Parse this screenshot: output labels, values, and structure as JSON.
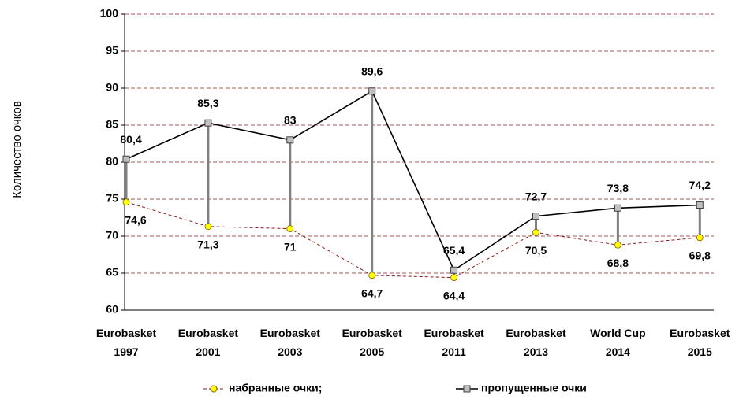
{
  "chart_data": {
    "type": "line",
    "y_label": "Количество очков",
    "categories": [
      "Eurobasket 1997",
      "Eurobasket 2001",
      "Eurobasket 2003",
      "Eurobasket 2005",
      "Eurobasket 2011",
      "Eurobasket 2013",
      "World Cup 2014",
      "Eurobasket 2015"
    ],
    "series": [
      {
        "name": "набранные очки;",
        "color": "#8b1a1a",
        "marker_color": "#ffff00",
        "values": [
          74.6,
          71.3,
          71,
          64.7,
          64.4,
          70.5,
          68.8,
          69.8
        ],
        "value_labels": [
          "74,6",
          "71,3",
          "71",
          "64,7",
          "64,4",
          "70,5",
          "68,8",
          "69,8"
        ]
      },
      {
        "name": "пропущенные очки",
        "color": "#000000",
        "marker_color": "#c0c0c0",
        "values": [
          80.4,
          85.3,
          83,
          89.6,
          65.4,
          72.7,
          73.8,
          74.2
        ],
        "value_labels": [
          "80,4",
          "85,3",
          "83",
          "89,6",
          "65,4",
          "72,7",
          "73,8",
          "74,2"
        ]
      }
    ],
    "ylim": [
      60,
      100
    ],
    "yticks": [
      60,
      65,
      70,
      75,
      80,
      85,
      90,
      95,
      100
    ],
    "grid": true
  }
}
